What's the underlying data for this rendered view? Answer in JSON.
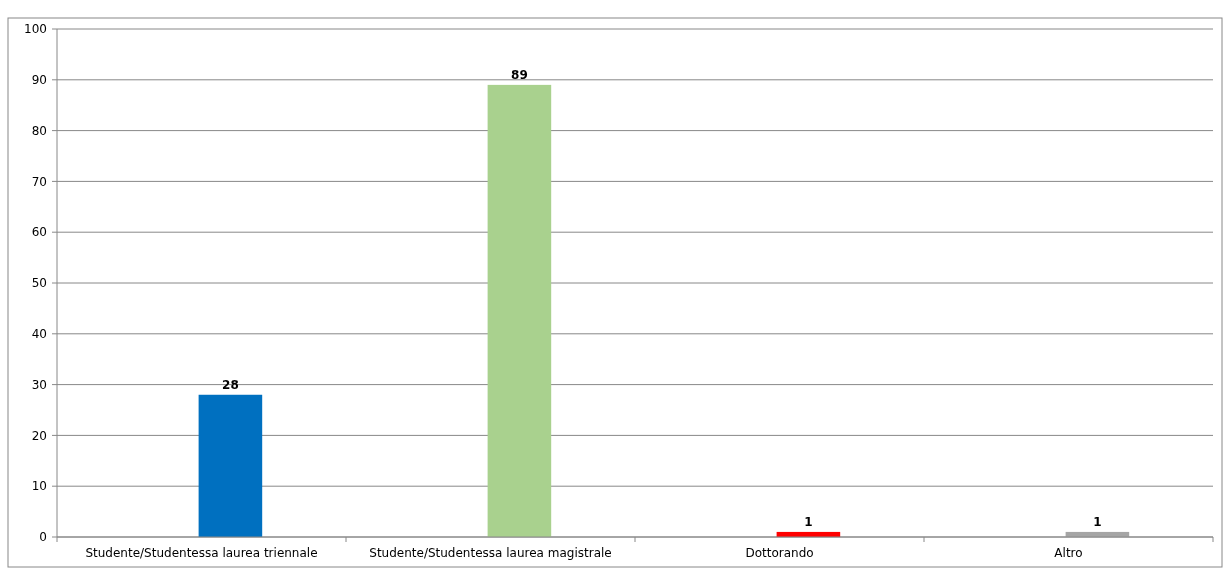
{
  "chart_data": {
    "type": "bar",
    "categories": [
      "Studente/Studentessa laurea triennale",
      "Studente/Studentessa laurea magistrale",
      "Dottorando",
      "Altro"
    ],
    "values": [
      28,
      89,
      1,
      1
    ],
    "colors": [
      "#0070c0",
      "#a9d18e",
      "#ff0000",
      "#a5a5a5"
    ],
    "ylim": [
      0,
      100
    ],
    "yticks": [
      0,
      10,
      20,
      30,
      40,
      50,
      60,
      70,
      80,
      90,
      100
    ],
    "grid": "y",
    "data_labels": true
  }
}
